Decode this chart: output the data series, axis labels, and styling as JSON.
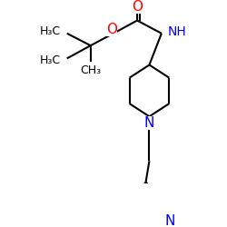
{
  "figsize": [
    2.5,
    2.5
  ],
  "dpi": 100,
  "colors": {
    "bond": "#000000",
    "O": "#ff0000",
    "N": "#0000ff",
    "C": "#000000",
    "background": "#ffffff"
  },
  "layout": {
    "xlim": [
      0,
      250
    ],
    "ylim": [
      0,
      250
    ]
  }
}
